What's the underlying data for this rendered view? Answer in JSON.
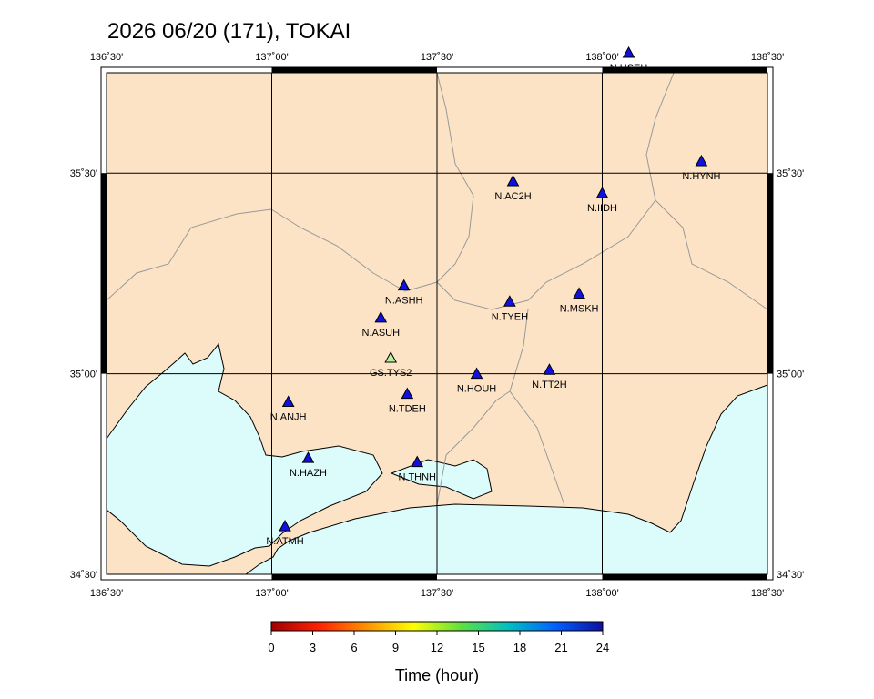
{
  "chart_data": {
    "type": "map",
    "title": "2026 06/20 (171), TOKAI",
    "xlim": [
      136.5,
      138.5
    ],
    "ylim": [
      34.5,
      35.75
    ],
    "xticks": [
      {
        "value": 136.5,
        "label": "136˚30'"
      },
      {
        "value": 137.0,
        "label": "137˚00'"
      },
      {
        "value": 137.5,
        "label": "137˚30'"
      },
      {
        "value": 138.0,
        "label": "138˚00'"
      },
      {
        "value": 138.5,
        "label": "138˚30'"
      }
    ],
    "yticks": [
      {
        "value": 34.5,
        "label": "34˚30'"
      },
      {
        "value": 35.0,
        "label": "35˚00'"
      },
      {
        "value": 35.5,
        "label": "35˚30'"
      }
    ],
    "grid": true,
    "stations": [
      {
        "name": "N.HSEH",
        "lon": 138.08,
        "lat": 35.8,
        "color": "#1010e0"
      },
      {
        "name": "N.HYNH",
        "lon": 138.3,
        "lat": 35.53,
        "color": "#1010e0"
      },
      {
        "name": "N.AC2H",
        "lon": 137.73,
        "lat": 35.48,
        "color": "#1010e0"
      },
      {
        "name": "N.IIDH",
        "lon": 138.0,
        "lat": 35.45,
        "color": "#1010e0"
      },
      {
        "name": "N.ASHH",
        "lon": 137.4,
        "lat": 35.22,
        "color": "#1010e0"
      },
      {
        "name": "N.TYEH",
        "lon": 137.72,
        "lat": 35.18,
        "color": "#1010e0"
      },
      {
        "name": "N.MSKH",
        "lon": 137.93,
        "lat": 35.2,
        "color": "#1010e0"
      },
      {
        "name": "N.ASUH",
        "lon": 137.33,
        "lat": 35.14,
        "color": "#1010e0"
      },
      {
        "name": "GS.TYS2",
        "lon": 137.36,
        "lat": 35.04,
        "color": "#b8f0a0"
      },
      {
        "name": "N.HOUH",
        "lon": 137.62,
        "lat": 35.0,
        "color": "#1010e0"
      },
      {
        "name": "N.TT2H",
        "lon": 137.84,
        "lat": 35.01,
        "color": "#1010e0"
      },
      {
        "name": "N.TDEH",
        "lon": 137.41,
        "lat": 34.95,
        "color": "#1010e0"
      },
      {
        "name": "N.ANJH",
        "lon": 137.05,
        "lat": 34.93,
        "color": "#1010e0"
      },
      {
        "name": "N.HAZH",
        "lon": 137.11,
        "lat": 34.79,
        "color": "#1010e0"
      },
      {
        "name": "N.THNH",
        "lon": 137.44,
        "lat": 34.78,
        "color": "#1010e0"
      },
      {
        "name": "N.ATMH",
        "lon": 137.04,
        "lat": 34.62,
        "color": "#1010e0"
      }
    ],
    "colorbar": {
      "label": "Time (hour)",
      "clim": [
        0,
        24
      ],
      "ticks": [
        0,
        3,
        6,
        9,
        12,
        15,
        18,
        21,
        24
      ],
      "colors": [
        "#a00000",
        "#ff2000",
        "#ff9000",
        "#ffff00",
        "#60e040",
        "#00c0c0",
        "#0060ff",
        "#1010a0"
      ]
    }
  }
}
